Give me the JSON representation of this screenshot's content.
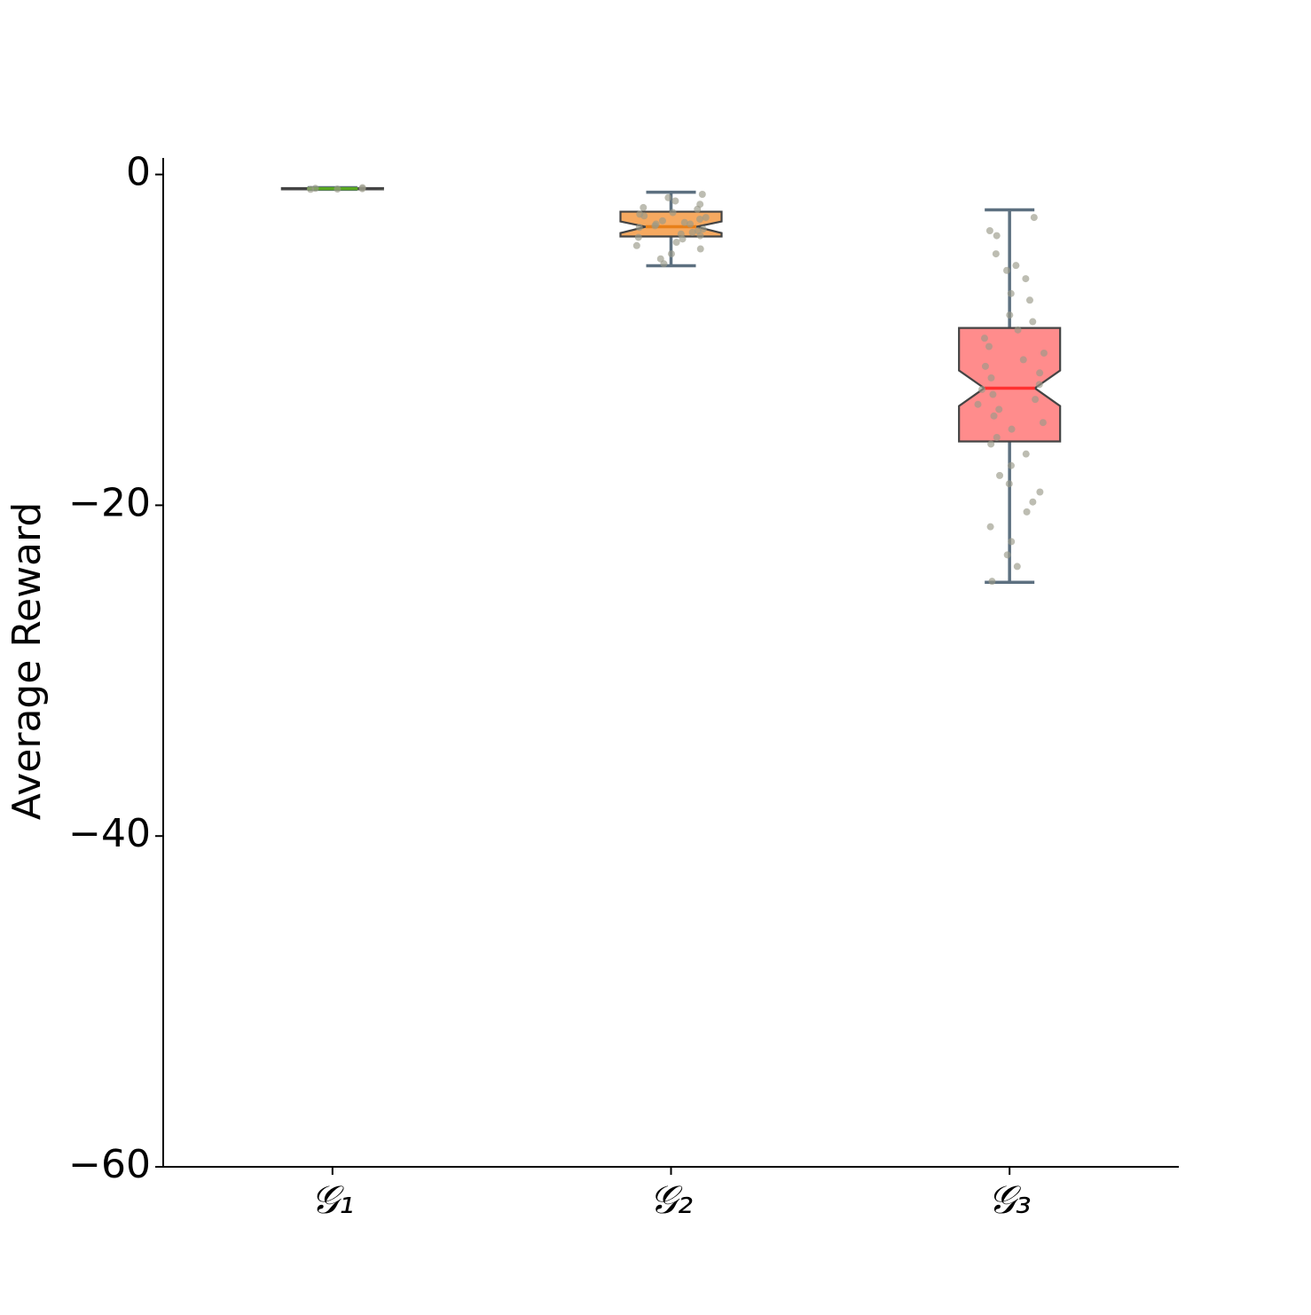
{
  "chart_data": {
    "type": "box",
    "ylabel": "Average Reward",
    "categories": [
      "𝒢₁",
      "𝒢₂",
      "𝒢₃"
    ],
    "ylim": [
      -60,
      1
    ],
    "yticks": [
      0,
      {
        "value": -20,
        "label": "−20"
      },
      {
        "value": -40,
        "label": "−40"
      },
      {
        "value": -60,
        "label": "−60"
      }
    ],
    "whisker_color": "#5d7080",
    "point_color": "#9a9a88",
    "boxes": [
      {
        "whislo": -0.9,
        "q1": -0.9,
        "med": -0.86,
        "q3": -0.82,
        "whishi": -0.8,
        "notch_low": -0.88,
        "notch_high": -0.84,
        "color": "#7ccc3a",
        "median_color": "#5aa820",
        "points": [
          -0.8,
          -0.84,
          -0.86,
          -0.88,
          -0.9
        ]
      },
      {
        "whislo": -5.52,
        "q1": -3.75,
        "med": -3.16,
        "q3": -2.25,
        "whishi": -1.07,
        "notch_low": -3.54,
        "notch_high": -2.84,
        "color": "#f5a04f",
        "median_color": "#e8801a",
        "points": [
          -1.2,
          -1.4,
          -1.6,
          -1.8,
          -2.0,
          -2.1,
          -2.3,
          -2.4,
          -2.5,
          -2.6,
          -2.7,
          -2.8,
          -2.9,
          -3.0,
          -3.0,
          -3.1,
          -3.2,
          -3.3,
          -3.4,
          -3.5,
          -3.6,
          -3.7,
          -3.8,
          -3.9,
          -4.1,
          -4.3,
          -4.5,
          -4.8,
          -5.1,
          -5.4
        ]
      },
      {
        "whislo": -24.66,
        "q1": -16.14,
        "med": -12.92,
        "q3": -9.28,
        "whishi": -2.14,
        "notch_low": -14.0,
        "notch_high": -11.85,
        "color": "#ff7f7f",
        "median_color": "#ff3030",
        "points": [
          -2.6,
          -3.4,
          -3.7,
          -4.8,
          -5.5,
          -5.8,
          -6.3,
          -7.2,
          -7.6,
          -8.5,
          -8.9,
          -9.4,
          -9.9,
          -10.4,
          -10.8,
          -11.2,
          -11.6,
          -12.0,
          -12.3,
          -12.7,
          -13.0,
          -13.3,
          -13.6,
          -13.9,
          -14.2,
          -14.6,
          -15.0,
          -15.4,
          -15.9,
          -16.3,
          -16.9,
          -17.6,
          -18.2,
          -18.7,
          -19.2,
          -19.8,
          -20.4,
          -21.3,
          -22.2,
          -23.0,
          -23.7,
          -24.6
        ]
      }
    ]
  }
}
